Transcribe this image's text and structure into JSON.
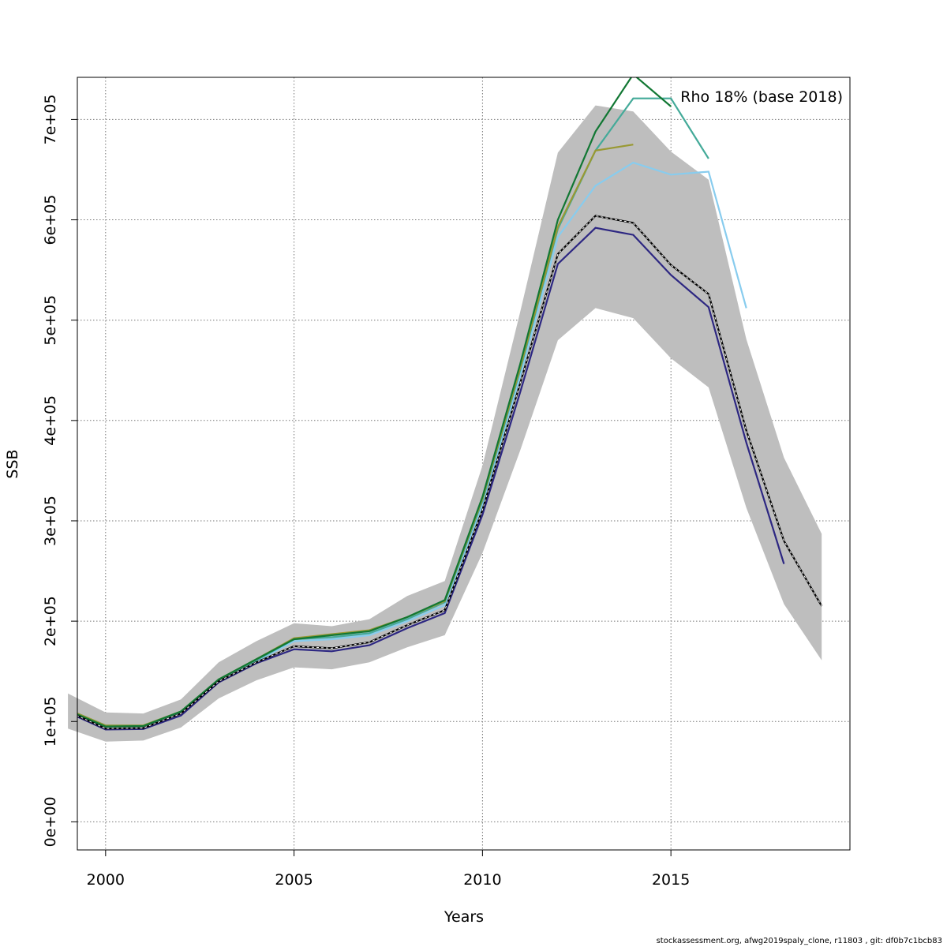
{
  "chart_data": {
    "type": "line",
    "xlabel": "Years",
    "ylabel": "SSB",
    "xlim": [
      1999.25,
      2019.75
    ],
    "ylim": [
      -28000,
      742000
    ],
    "x_ticks": [
      2000,
      2005,
      2010,
      2015
    ],
    "x_tick_labels": [
      "2000",
      "2005",
      "2010",
      "2015"
    ],
    "y_ticks": [
      0,
      100000,
      200000,
      300000,
      400000,
      500000,
      600000,
      700000
    ],
    "y_tick_labels": [
      "0e+00",
      "1e+05",
      "2e+05",
      "3e+05",
      "4e+05",
      "5e+05",
      "6e+05",
      "7e+05"
    ],
    "grid": true,
    "annotation": "Rho 18% (base 2018)",
    "confidence_band": {
      "color": "#bebebe",
      "x": [
        1999,
        2000,
        2001,
        2002,
        2003,
        2004,
        2005,
        2006,
        2007,
        2008,
        2009,
        2010,
        2011,
        2012,
        2013,
        2014,
        2015,
        2016,
        2017,
        2018,
        2019
      ],
      "lower": [
        93000,
        80000,
        81000,
        94000,
        123000,
        141000,
        154000,
        152000,
        159000,
        174000,
        186000,
        268000,
        370000,
        480000,
        512000,
        502000,
        462000,
        433000,
        313000,
        217000,
        161000
      ],
      "upper": [
        128000,
        109000,
        108000,
        122000,
        159000,
        180000,
        198000,
        195000,
        202000,
        225000,
        240000,
        355000,
        508000,
        667000,
        714000,
        708000,
        668000,
        640000,
        481000,
        363000,
        287000
      ]
    },
    "series": [
      {
        "color": "#000000",
        "dashed": true,
        "x": [
          1999,
          2000,
          2001,
          2002,
          2003,
          2004,
          2005,
          2006,
          2007,
          2008,
          2009,
          2010,
          2011,
          2012,
          2013,
          2014,
          2015,
          2016,
          2017,
          2018,
          2019
        ],
        "values": [
          110000,
          93000,
          93500,
          108000,
          140000,
          159000,
          175000,
          173000,
          179000,
          196000,
          211000,
          311000,
          437000,
          566000,
          604000,
          597000,
          555000,
          526000,
          390000,
          280000,
          215000
        ]
      },
      {
        "color": "#2d2782",
        "x": [
          1999,
          2000,
          2001,
          2002,
          2003,
          2004,
          2005,
          2006,
          2007,
          2008,
          2009,
          2010,
          2011,
          2012,
          2013,
          2014,
          2015,
          2016,
          2017,
          2018
        ],
        "values": [
          109000,
          92000,
          92500,
          106000,
          139000,
          158000,
          172000,
          170000,
          176000,
          193000,
          208000,
          306000,
          428000,
          556000,
          592000,
          585000,
          545000,
          513000,
          378000,
          257000
        ]
      },
      {
        "color": "#88ccee",
        "x": [
          1999,
          2000,
          2001,
          2002,
          2003,
          2004,
          2005,
          2006,
          2007,
          2008,
          2009,
          2010,
          2011,
          2012,
          2013,
          2014,
          2015,
          2016,
          2017
        ],
        "values": [
          111000,
          95000,
          95500,
          109000,
          141000,
          160000,
          180000,
          182000,
          186000,
          200000,
          216000,
          316000,
          444000,
          583000,
          634000,
          657000,
          645000,
          648000,
          512000
        ]
      },
      {
        "color": "#44aa99",
        "x": [
          1999,
          2000,
          2001,
          2002,
          2003,
          2004,
          2005,
          2006,
          2007,
          2008,
          2009,
          2010,
          2011,
          2012,
          2013,
          2014,
          2015,
          2016
        ],
        "values": [
          112000,
          96000,
          96000,
          110000,
          142000,
          161000,
          182000,
          184000,
          188000,
          202000,
          219000,
          320000,
          450000,
          591000,
          669000,
          721000,
          721000,
          661000
        ]
      },
      {
        "color": "#999933",
        "x": [
          1999,
          2000,
          2001,
          2002,
          2003,
          2004,
          2005,
          2006,
          2007,
          2008,
          2009,
          2010,
          2011,
          2012,
          2013,
          2014
        ],
        "values": [
          112000,
          96000,
          96000,
          110000,
          142000,
          162000,
          183000,
          187000,
          191000,
          204000,
          220000,
          322000,
          452000,
          593000,
          669000,
          675000
        ]
      },
      {
        "color": "#117733",
        "x": [
          1999,
          2000,
          2001,
          2002,
          2003,
          2004,
          2005,
          2006,
          2007,
          2008,
          2009,
          2010,
          2011,
          2012,
          2013,
          2014,
          2015
        ],
        "values": [
          111000,
          95000,
          95500,
          110000,
          142000,
          162000,
          182000,
          186000,
          190000,
          204000,
          221000,
          324000,
          456000,
          600000,
          688000,
          745000,
          713000
        ]
      }
    ]
  },
  "footer": "stockassessment.org, afwg2019spaly_clone, r11803 , git: df0b7c1bcb83"
}
